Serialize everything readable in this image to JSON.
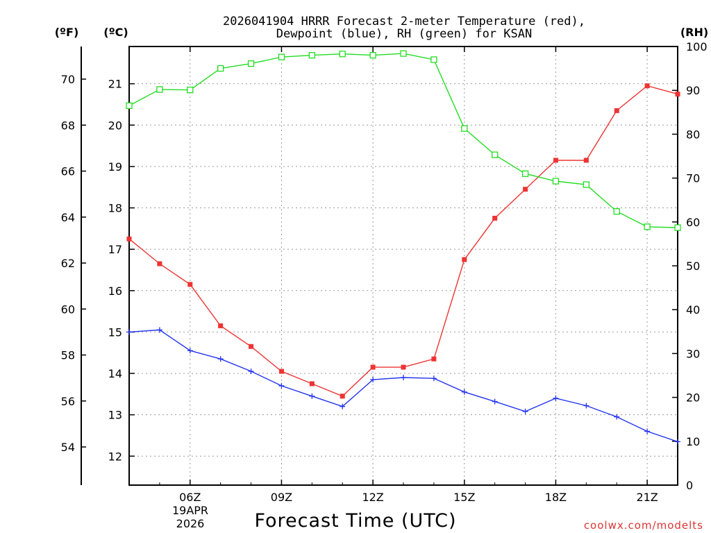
{
  "chart_data": {
    "type": "line",
    "title_line1": "2026041904 HRRR Forecast 2-meter Temperature (red),",
    "title_line2": "Dewpoint (blue), RH (green) for KSAN",
    "xlabel": "Forecast Time (UTC)",
    "credit": "coolwx.com/modelts",
    "axis_labels": {
      "fahrenheit": "(ºF)",
      "celsius": "(ºC)",
      "rh": "(RH)"
    },
    "x_hours": [
      4,
      5,
      6,
      7,
      8,
      9,
      10,
      11,
      12,
      13,
      14,
      15,
      16,
      17,
      18,
      19,
      20,
      21,
      22
    ],
    "x_ticks": [
      {
        "hour": 6,
        "label": "06Z"
      },
      {
        "hour": 9,
        "label": "09Z"
      },
      {
        "hour": 12,
        "label": "12Z"
      },
      {
        "hour": 15,
        "label": "15Z"
      },
      {
        "hour": 18,
        "label": "18Z"
      },
      {
        "hour": 21,
        "label": "21Z"
      }
    ],
    "date_line1": "19APR",
    "date_line2": "2026",
    "xlim": [
      4,
      22
    ],
    "c_ylim": [
      11.3,
      21.9
    ],
    "rh_ylim": [
      0,
      100
    ],
    "c_ticks": [
      "12",
      "13",
      "14",
      "15",
      "16",
      "17",
      "18",
      "19",
      "20",
      "21"
    ],
    "f_ticks": [
      "54",
      "56",
      "58",
      "60",
      "62",
      "64",
      "66",
      "68",
      "70"
    ],
    "rh_ticks": [
      "0",
      "10",
      "20",
      "30",
      "40",
      "50",
      "60",
      "70",
      "80",
      "90",
      "100"
    ],
    "series": [
      {
        "name": "Temperature",
        "unit": "C",
        "color": "#ee3333",
        "marker": "filled-square",
        "values": [
          17.25,
          16.65,
          16.15,
          15.15,
          14.65,
          14.05,
          13.75,
          13.45,
          14.15,
          14.15,
          14.35,
          16.75,
          17.75,
          18.45,
          19.15,
          19.15,
          20.35,
          20.95,
          20.75
        ]
      },
      {
        "name": "Dewpoint",
        "unit": "C",
        "color": "#2233ee",
        "marker": "plus",
        "values": [
          15.0,
          15.05,
          14.55,
          14.35,
          14.05,
          13.7,
          13.45,
          13.2,
          13.85,
          13.9,
          13.88,
          13.55,
          13.32,
          13.08,
          13.4,
          13.22,
          12.95,
          12.6,
          12.35
        ]
      },
      {
        "name": "RH",
        "unit": "%",
        "color": "#22dd22",
        "marker": "open-square",
        "values": [
          86.5,
          90.2,
          90.1,
          95.0,
          96.1,
          97.6,
          98.0,
          98.3,
          98.0,
          98.4,
          97.0,
          81.3,
          75.3,
          71.0,
          69.3,
          68.5,
          62.4,
          58.9,
          58.7
        ]
      }
    ]
  }
}
